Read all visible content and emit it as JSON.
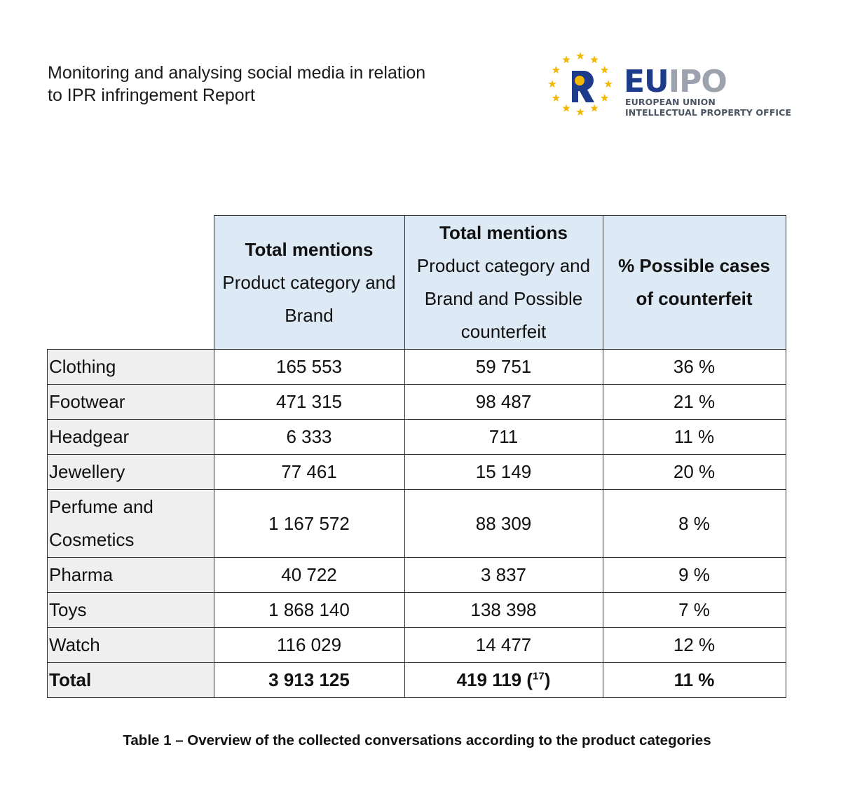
{
  "header": {
    "title_line1": "Monitoring and analysing social media in relation",
    "title_line2": "to IPR infringement Report"
  },
  "logo": {
    "eu": "EU",
    "ipo": "IPO",
    "subtitle_line1": "EUROPEAN UNION",
    "subtitle_line2": "INTELLECTUAL PROPERTY OFFICE",
    "colors": {
      "navy": "#1e3a8a",
      "grey": "#9ca3af",
      "star": "#f2b705"
    }
  },
  "table": {
    "columns": [
      {
        "bold": "Total mentions",
        "lines": [
          "Product category and",
          "Brand"
        ]
      },
      {
        "bold": "Total mentions",
        "lines": [
          "Product category and",
          "Brand and Possible",
          "counterfeit"
        ]
      },
      {
        "bold_lines": [
          "% Possible cases",
          "of counterfeit"
        ]
      }
    ],
    "rows": [
      {
        "category": "Clothing",
        "brand": "165 553",
        "counterfeit": "59 751",
        "percent": "36 %"
      },
      {
        "category": "Footwear",
        "brand": "471 315",
        "counterfeit": "98 487",
        "percent": "21 %"
      },
      {
        "category": "Headgear",
        "brand": "6 333",
        "counterfeit": "711",
        "percent": "11 %"
      },
      {
        "category": "Jewellery",
        "brand": "77 461",
        "counterfeit": "15 149",
        "percent": "20 %"
      },
      {
        "category_lines": [
          "Perfume and",
          "Cosmetics"
        ],
        "brand": "1 167 572",
        "counterfeit": "88 309",
        "percent": "8 %"
      },
      {
        "category": "Pharma",
        "brand": "40 722",
        "counterfeit": "3 837",
        "percent": "9 %"
      },
      {
        "category": "Toys",
        "brand": "1 868 140",
        "counterfeit": "138 398",
        "percent": "7 %"
      },
      {
        "category": "Watch",
        "brand": "116 029",
        "counterfeit": "14 477",
        "percent": "12 %"
      }
    ],
    "total": {
      "category": "Total",
      "brand": "3 913 125",
      "counterfeit": "419 119",
      "footnote_open": " (",
      "footnote_num": "17",
      "footnote_close": ")",
      "percent": "11 %"
    },
    "header_bg": "#dde9f5",
    "category_bg": "#efefef"
  },
  "caption": "Table 1 – Overview of the collected conversations according to the product categories"
}
